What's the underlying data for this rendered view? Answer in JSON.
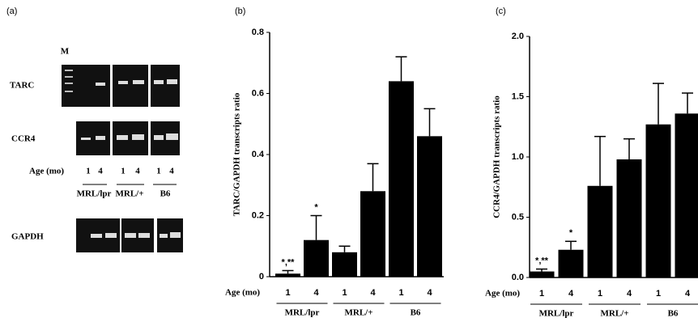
{
  "panel_a": {
    "label": "(a)",
    "marker": "M",
    "rows": [
      "TARC",
      "CCR4",
      "GAPDH"
    ],
    "age_label": "Age (mo)",
    "ages": [
      "1",
      "4",
      "1",
      "4",
      "1",
      "4"
    ],
    "groups": [
      "MRL/lpr",
      "MRL/+",
      "B6"
    ]
  },
  "chart_data": [
    {
      "type": "bar",
      "label": "(b)",
      "y_label": "TARC/GAPDH transcripts ratio",
      "x_label": "Age (mo)",
      "categories": [
        "1",
        "4",
        "1",
        "4",
        "1",
        "4"
      ],
      "groups": [
        "MRL/lpr",
        "MRL/+",
        "B6"
      ],
      "values": [
        0.01,
        0.12,
        0.08,
        0.28,
        0.64,
        0.46
      ],
      "errors": [
        0.01,
        0.08,
        0.02,
        0.09,
        0.08,
        0.09
      ],
      "color": "#000000",
      "ylim": [
        0,
        0.8
      ],
      "yticks": [
        0,
        0.2,
        0.4,
        0.6,
        0.8
      ],
      "annotations": [
        {
          "text": "*,**",
          "index": 0
        },
        {
          "text": "*",
          "index": 1
        }
      ]
    },
    {
      "type": "bar",
      "label": "(c)",
      "y_label": "CCR4/GAPDH transcripts ratio",
      "x_label": "Age (mo)",
      "categories": [
        "1",
        "4",
        "1",
        "4",
        "1",
        "4"
      ],
      "groups": [
        "MRL/lpr",
        "MRL/+",
        "B6"
      ],
      "values": [
        0.05,
        0.23,
        0.76,
        0.98,
        1.27,
        1.36
      ],
      "errors": [
        0.02,
        0.07,
        0.41,
        0.17,
        0.34,
        0.17
      ],
      "color": "#000000",
      "ylim": [
        0,
        2.0
      ],
      "yticks": [
        {
          "value": 0,
          "label": "0.0"
        },
        {
          "value": 0.5,
          "label": "0.5"
        },
        {
          "value": 1,
          "label": "1.0"
        },
        {
          "value": 1.5,
          "label": "1.5"
        },
        {
          "value": 2,
          "label": "2.0"
        }
      ],
      "annotations": [
        {
          "text": "*,**",
          "index": 0
        },
        {
          "text": "*",
          "index": 1
        }
      ]
    }
  ]
}
